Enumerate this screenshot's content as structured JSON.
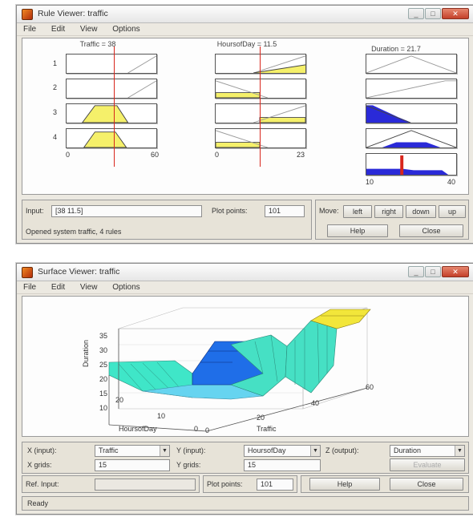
{
  "rule_viewer": {
    "title": "Rule Viewer: traffic",
    "menu": [
      "File",
      "Edit",
      "View",
      "Options"
    ],
    "inputs": [
      {
        "label": "Traffic = 38",
        "range_min": "0",
        "range_max": "60",
        "value_fraction": 0.63
      },
      {
        "label": "HoursofDay = 11.5",
        "range_min": "0",
        "range_max": "23",
        "value_fraction": 0.5
      }
    ],
    "output": {
      "label": "Duration = 21.7",
      "range_min": "10",
      "range_max": "40",
      "value_fraction": 0.39
    },
    "rule_numbers": [
      "1",
      "2",
      "3",
      "4"
    ],
    "input_label": "Input:",
    "input_value": "[38 11.5]",
    "plot_points_label": "Plot points:",
    "plot_points_value": "101",
    "move_label": "Move:",
    "move_buttons": [
      "left",
      "right",
      "down",
      "up"
    ],
    "status": "Opened system traffic, 4 rules",
    "help_label": "Help",
    "close_label": "Close",
    "colors": {
      "accent": "#f5f06a",
      "output": "#2a2ad8",
      "indicator": "#d8261c"
    }
  },
  "surface_viewer": {
    "title": "Surface Viewer: traffic",
    "menu": [
      "File",
      "Edit",
      "View",
      "Options"
    ],
    "plot": {
      "zlabel": "Duration",
      "xlabel": "Traffic",
      "ylabel": "HoursofDay",
      "z_ticks": [
        "35",
        "30",
        "25",
        "20",
        "15",
        "10"
      ],
      "x_ticks": [
        "0",
        "20",
        "40",
        "60"
      ],
      "y_ticks": [
        "20",
        "10",
        "0"
      ]
    },
    "x_input_label": "X (input):",
    "x_input_value": "Traffic",
    "y_input_label": "Y (input):",
    "y_input_value": "HoursofDay",
    "z_output_label": "Z (output):",
    "z_output_value": "Duration",
    "x_grids_label": "X grids:",
    "x_grids_value": "15",
    "y_grids_label": "Y grids:",
    "y_grids_value": "15",
    "evaluate_label": "Evaluate",
    "ref_input_label": "Ref. Input:",
    "ref_input_value": "",
    "plot_points_label": "Plot points:",
    "plot_points_value": "101",
    "help_label": "Help",
    "close_label": "Close",
    "status": "Ready"
  }
}
